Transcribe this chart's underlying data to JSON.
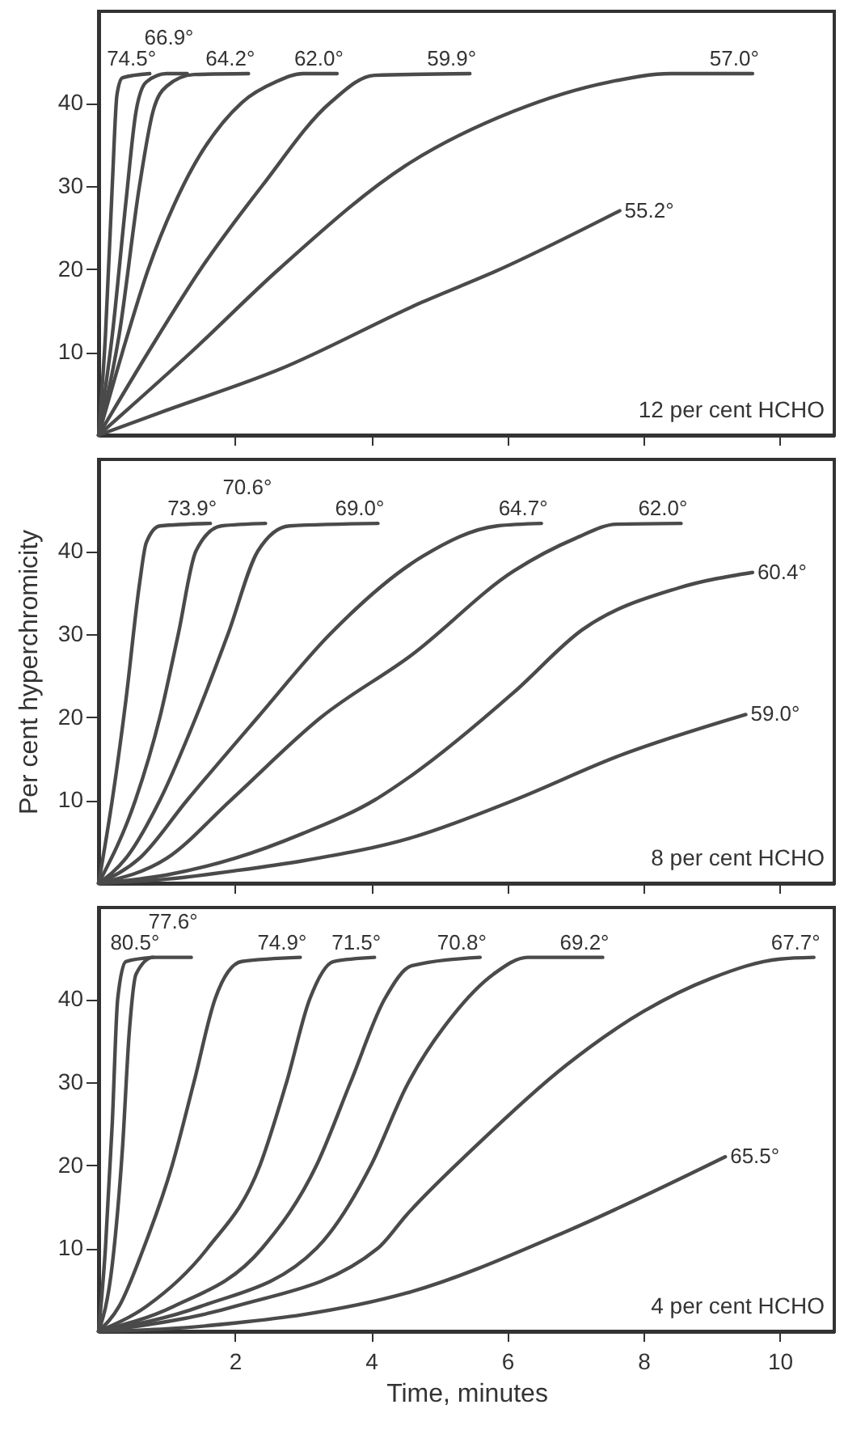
{
  "chart_data": [
    {
      "type": "line",
      "xlim": [
        0,
        10.8
      ],
      "ylim": [
        0,
        51
      ],
      "xticks": [
        2,
        4,
        6,
        8,
        10
      ],
      "yticks": [
        10,
        20,
        30,
        40
      ],
      "tick_labels": "y",
      "annotations": [
        "12 per cent HCHO"
      ],
      "series": [
        {
          "name": "74.5°",
          "color": "#4a4a4a",
          "x": [
            0,
            0.1,
            0.2,
            0.27,
            0.35,
            0.75
          ],
          "values": [
            0,
            12,
            30,
            41,
            43,
            43.5
          ]
        },
        {
          "name": "66.9°",
          "color": "#4a4a4a",
          "x": [
            0,
            0.2,
            0.4,
            0.55,
            0.7,
            1.0,
            1.3
          ],
          "values": [
            0,
            12,
            28,
            39,
            42.5,
            43.5,
            43.5
          ]
        },
        {
          "name": "64.2°",
          "color": "#4a4a4a",
          "x": [
            0,
            0.3,
            0.6,
            0.8,
            1.0,
            1.4,
            2.2
          ],
          "values": [
            0,
            12,
            30,
            39,
            42,
            43.4,
            43.5
          ]
        },
        {
          "name": "62.0°",
          "color": "#4a4a4a",
          "x": [
            0,
            0.35,
            0.73,
            1.24,
            2.1,
            2.6,
            3.0,
            3.5
          ],
          "values": [
            0,
            10,
            20,
            30,
            40,
            42.5,
            43.5,
            43.5
          ]
        },
        {
          "name": "59.9°",
          "color": "#4a4a4a",
          "x": [
            0,
            0.73,
            1.5,
            2.4,
            3.4,
            4.05,
            5.45
          ],
          "values": [
            0,
            10,
            20,
            30,
            40,
            43.3,
            43.5
          ]
        },
        {
          "name": "57.0°",
          "color": "#4a4a4a",
          "x": [
            0,
            1.36,
            2.65,
            4.5,
            6.1,
            7.5,
            8.4,
            9.6
          ],
          "values": [
            0,
            10,
            20,
            32.4,
            39,
            42.5,
            43.5,
            43.5
          ]
        },
        {
          "name": "55.2°",
          "color": "#4a4a4a",
          "x": [
            0,
            1,
            2.65,
            4.75,
            5.85,
            7.65
          ],
          "values": [
            0,
            3,
            7.9,
            16,
            19.8,
            27
          ]
        }
      ]
    },
    {
      "type": "line",
      "xlim": [
        0,
        10.8
      ],
      "ylim": [
        0,
        51
      ],
      "xticks": [
        2,
        4,
        6,
        8,
        10
      ],
      "yticks": [
        10,
        20,
        30,
        40
      ],
      "tick_labels": "y",
      "ylabel": "Per cent hyperchromicity",
      "annotations": [
        "8 per cent HCHO"
      ],
      "series": [
        {
          "name": "73.9°",
          "color": "#4a4a4a",
          "x": [
            0,
            0.2,
            0.4,
            0.6,
            0.7,
            0.9,
            1.64
          ],
          "values": [
            0,
            10,
            22,
            36,
            41,
            43,
            43.3
          ]
        },
        {
          "name": "70.6°",
          "color": "#4a4a4a",
          "x": [
            0,
            0.54,
            0.9,
            1.17,
            1.43,
            1.8,
            2.45
          ],
          "values": [
            0,
            10,
            20,
            30,
            40,
            43,
            43.3
          ]
        },
        {
          "name": "69.0°",
          "color": "#4a4a4a",
          "x": [
            0,
            0.4,
            0.9,
            1.43,
            1.9,
            2.34,
            2.8,
            4.1
          ],
          "values": [
            0,
            3,
            10,
            20,
            30,
            40,
            43,
            43.3
          ]
        },
        {
          "name": "64.7°",
          "color": "#4a4a4a",
          "x": [
            0,
            0.6,
            1.3,
            2.34,
            3.4,
            4.75,
            5.85,
            6.5
          ],
          "values": [
            0,
            3,
            10,
            20,
            30,
            39.3,
            43,
            43.3
          ]
        },
        {
          "name": "62.0°",
          "color": "#4a4a4a",
          "x": [
            0,
            1.0,
            1.94,
            3.27,
            4.6,
            6.1,
            7.0,
            7.6,
            8.55
          ],
          "values": [
            0,
            3,
            10,
            20,
            27.5,
            37.6,
            41.5,
            43.2,
            43.3
          ]
        },
        {
          "name": "60.4°",
          "color": "#4a4a4a",
          "x": [
            0,
            1,
            2,
            3,
            4.05,
            4.6,
            6.1,
            7.1,
            8.5,
            9.6
          ],
          "values": [
            0,
            1,
            3,
            6,
            10,
            13,
            23,
            30.5,
            35.5,
            37.4
          ]
        },
        {
          "name": "59.0°",
          "color": "#4a4a4a",
          "x": [
            0,
            1,
            2,
            3,
            4.6,
            6.1,
            7.63,
            9.5
          ],
          "values": [
            0,
            0.5,
            1.5,
            2.7,
            5.5,
            10,
            15.3,
            20.3
          ]
        }
      ]
    },
    {
      "type": "line",
      "xlim": [
        0,
        10.8
      ],
      "ylim": [
        0,
        51
      ],
      "xticks": [
        2,
        4,
        6,
        8,
        10
      ],
      "yticks": [
        10,
        20,
        30,
        40
      ],
      "xlabel": "Time, minutes",
      "annotations": [
        "4 per cent HCHO"
      ],
      "series": [
        {
          "name": "80.5°",
          "color": "#4a4a4a",
          "x": [
            0,
            0.1,
            0.2,
            0.28,
            0.4,
            0.8
          ],
          "values": [
            0,
            10,
            25,
            40,
            44.5,
            45
          ]
        },
        {
          "name": "77.6°",
          "color": "#4a4a4a",
          "x": [
            0,
            0.2,
            0.35,
            0.45,
            0.55,
            0.8,
            1.36
          ],
          "values": [
            0,
            8,
            22,
            36,
            43,
            45,
            45
          ]
        },
        {
          "name": "74.9°",
          "color": "#4a4a4a",
          "x": [
            0,
            0.3,
            0.66,
            1.08,
            1.4,
            1.71,
            2.1,
            2.96
          ],
          "values": [
            0,
            3,
            10,
            20,
            30,
            40,
            44.5,
            45
          ]
        },
        {
          "name": "71.5°",
          "color": "#4a4a4a",
          "x": [
            0,
            0.7,
            1.6,
            2.37,
            2.76,
            3.1,
            3.45,
            4.05
          ],
          "values": [
            0,
            3,
            10,
            20,
            30,
            40,
            44.5,
            45
          ]
        },
        {
          "name": "70.8°",
          "color": "#4a4a4a",
          "x": [
            0,
            1.1,
            2.4,
            3.2,
            3.7,
            4.2,
            4.6,
            5.6
          ],
          "values": [
            0,
            3,
            10,
            20,
            30,
            40,
            44,
            45
          ]
        },
        {
          "name": "69.2°",
          "color": "#4a4a4a",
          "x": [
            0,
            1.5,
            3.2,
            4.0,
            4.52,
            5.2,
            5.8,
            6.3,
            7.4
          ],
          "values": [
            0,
            3,
            10,
            20,
            29.5,
            38,
            43,
            45,
            45
          ]
        },
        {
          "name": "67.7°",
          "color": "#4a4a4a",
          "x": [
            0,
            2,
            4.1,
            4.52,
            5.5,
            6.86,
            8,
            9,
            10,
            10.5
          ],
          "values": [
            0,
            3,
            10,
            14,
            22,
            32,
            38.5,
            42.5,
            44.8,
            45
          ]
        },
        {
          "name": "65.5°",
          "color": "#4a4a4a",
          "x": [
            0,
            1,
            2,
            3,
            4.52,
            6.86,
            9.2
          ],
          "values": [
            0,
            0.3,
            1,
            2,
            4.6,
            12,
            21
          ]
        }
      ]
    }
  ]
}
